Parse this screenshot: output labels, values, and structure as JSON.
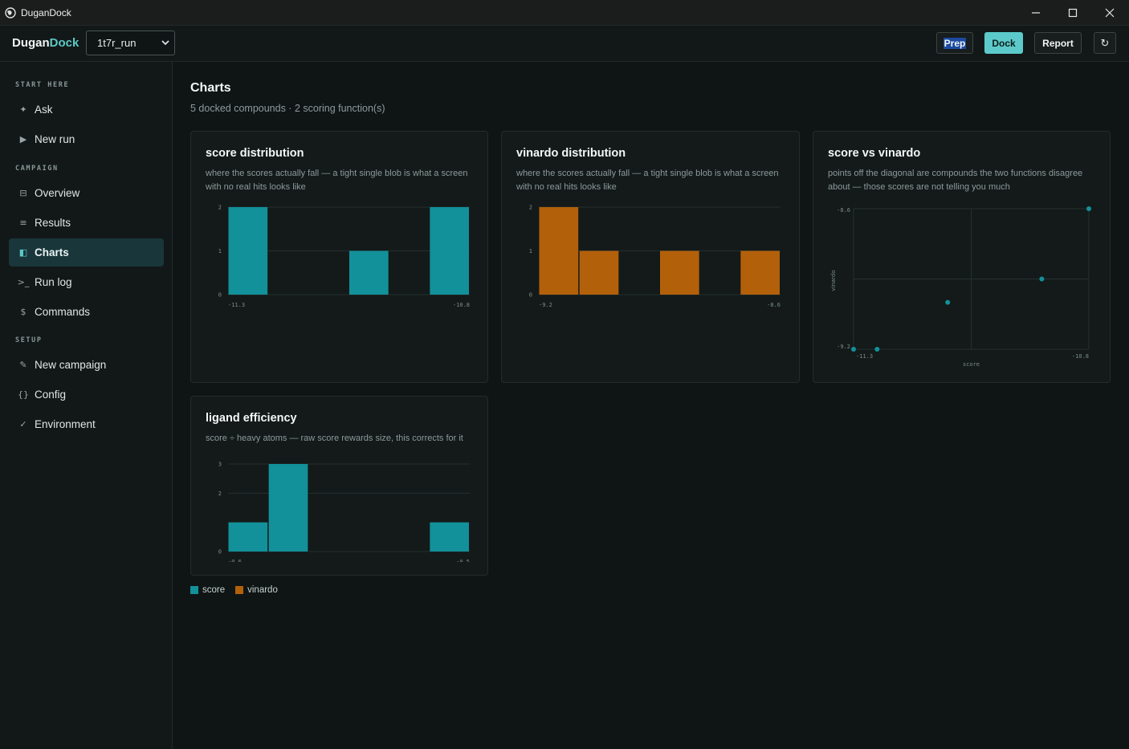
{
  "window": {
    "title": "DuganDock",
    "controls": [
      "minimize",
      "maximize",
      "close"
    ]
  },
  "header": {
    "brand_a": "Dugan",
    "brand_b": "Dock",
    "run_select": "1t7r_run",
    "buttons": {
      "prep": "Prep",
      "dock": "Dock",
      "report": "Report",
      "refresh": "↻"
    }
  },
  "sidebar": {
    "sections": [
      {
        "label": "START HERE",
        "items": [
          {
            "icon": "✦",
            "label": "Ask"
          },
          {
            "icon": "▶",
            "label": "New run"
          }
        ]
      },
      {
        "label": "CAMPAIGN",
        "items": [
          {
            "icon": "⊟",
            "label": "Overview"
          },
          {
            "icon": "≡",
            "label": "Results"
          },
          {
            "icon": "◧",
            "label": "Charts",
            "active": true
          },
          {
            "icon": ">_",
            "label": "Run log"
          },
          {
            "icon": "$",
            "label": "Commands"
          }
        ]
      },
      {
        "label": "SETUP",
        "items": [
          {
            "icon": "✎",
            "label": "New campaign"
          },
          {
            "icon": "{}",
            "label": "Config"
          },
          {
            "icon": "✓",
            "label": "Environment"
          }
        ]
      }
    ]
  },
  "main": {
    "title": "Charts",
    "subtitle": "5 docked compounds · 2 scoring function(s)",
    "legend": [
      {
        "label": "score",
        "color": "#12919a"
      },
      {
        "label": "vinardo",
        "color": "#b3600a"
      }
    ]
  },
  "colors": {
    "score": "#12919a",
    "vinardo": "#b3600a",
    "accent": "#5cc9c9"
  },
  "chart_data": [
    {
      "type": "bar",
      "title": "score distribution",
      "description": "where the scores actually fall — a tight single blob is what a screen with no real hits looks like",
      "x_tick_labels": [
        "-11.3",
        "-10.8"
      ],
      "y_ticks": [
        0,
        1,
        2
      ],
      "values": [
        2,
        0,
        0,
        1,
        0,
        2
      ],
      "ylim": [
        0,
        2
      ],
      "color": "score"
    },
    {
      "type": "bar",
      "title": "vinardo distribution",
      "description": "where the scores actually fall — a tight single blob is what a screen with no real hits looks like",
      "x_tick_labels": [
        "-9.2",
        "-8.6"
      ],
      "y_ticks": [
        0,
        1,
        2
      ],
      "values": [
        2,
        1,
        0,
        1,
        0,
        1
      ],
      "ylim": [
        0,
        2
      ],
      "color": "vinardo"
    },
    {
      "type": "scatter",
      "title": "score vs vinardo",
      "description": "points off the diagonal are compounds the two functions disagree about — those scores are not telling you much",
      "xlabel": "score",
      "ylabel": "vinardo",
      "x_tick_labels": [
        "-11.3",
        "-10.8"
      ],
      "y_tick_labels": [
        "-9.2",
        "-8.6"
      ],
      "xlim": [
        -11.3,
        -10.8
      ],
      "ylim": [
        -9.2,
        -8.6
      ],
      "points": [
        [
          -11.3,
          -9.2
        ],
        [
          -11.25,
          -9.2
        ],
        [
          -11.1,
          -9.0
        ],
        [
          -10.9,
          -8.9
        ],
        [
          -10.8,
          -8.6
        ]
      ],
      "color": "score"
    },
    {
      "type": "bar",
      "title": "ligand efficiency",
      "description": "score ÷ heavy atoms — raw score rewards size, this corrects for it",
      "x_tick_labels": [
        "-0.6",
        "-0.5"
      ],
      "y_ticks": [
        0,
        2,
        3
      ],
      "values": [
        1,
        3,
        0,
        0,
        0,
        1
      ],
      "ylim": [
        0,
        3
      ],
      "color": "score"
    }
  ]
}
